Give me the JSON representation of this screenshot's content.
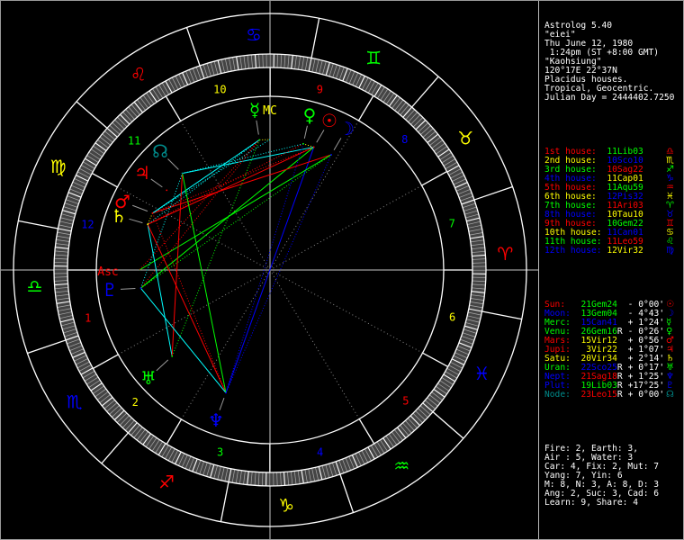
{
  "info": {
    "lines": [
      "Astrolog 5.40",
      "\"eiei\"",
      "Thu June 12, 1980",
      " 1:24pm (ST +8:00 GMT)",
      "\"Kaohsiung\"",
      "120°17E 22°37N",
      "Placidus houses.",
      "Tropical, Geocentric.",
      "Julian Day = 2444402.7250"
    ]
  },
  "colors": {
    "fire": "#ff0000",
    "earth": "#ffff00",
    "air": "#00ff00",
    "water": "#0000ff",
    "node": "#008b8b",
    "conjunction": "#ffff00",
    "opposition": "#0000ff",
    "square": "#ff0000",
    "trine": "#00ff00",
    "sextile": "#00ffff"
  },
  "signs": [
    {
      "abbr": "Ari",
      "icon": "aries-icon",
      "element": "fire"
    },
    {
      "abbr": "Tau",
      "icon": "taurus-icon",
      "element": "earth"
    },
    {
      "abbr": "Gem",
      "icon": "gemini-icon",
      "element": "air"
    },
    {
      "abbr": "Can",
      "icon": "cancer-icon",
      "element": "water"
    },
    {
      "abbr": "Leo",
      "icon": "leo-icon",
      "element": "fire"
    },
    {
      "abbr": "Vir",
      "icon": "virgo-icon",
      "element": "earth"
    },
    {
      "abbr": "Lib",
      "icon": "libra-icon",
      "element": "air"
    },
    {
      "abbr": "Sco",
      "icon": "scorpio-icon",
      "element": "water"
    },
    {
      "abbr": "Sag",
      "icon": "sagittarius-icon",
      "element": "fire"
    },
    {
      "abbr": "Cap",
      "icon": "capricorn-icon",
      "element": "earth"
    },
    {
      "abbr": "Aqu",
      "icon": "aquarius-icon",
      "element": "air"
    },
    {
      "abbr": "Pis",
      "icon": "pisces-icon",
      "element": "water"
    }
  ],
  "houses": [
    {
      "number": "1",
      "label": "1st house:",
      "value": "11Lib03",
      "icon": "libra-icon",
      "color": "#ff0000"
    },
    {
      "number": "2",
      "label": "2nd house:",
      "value": "10Sco10",
      "icon": "scorpio-icon",
      "color": "#ffff00"
    },
    {
      "number": "3",
      "label": "3rd house:",
      "value": "10Sag22",
      "icon": "sagittarius-icon",
      "color": "#00ff00"
    },
    {
      "number": "4",
      "label": "4th house:",
      "value": "11Cap01",
      "icon": "capricorn-icon",
      "color": "#0000ff"
    },
    {
      "number": "5",
      "label": "5th house:",
      "value": "11Aqu59",
      "icon": "aquarius-icon",
      "color": "#ff0000"
    },
    {
      "number": "6",
      "label": "6th house:",
      "value": "12Pis32",
      "icon": "pisces-icon",
      "color": "#ffff00"
    },
    {
      "number": "7",
      "label": "7th house:",
      "value": "11Ari03",
      "icon": "aries-icon",
      "color": "#00ff00"
    },
    {
      "number": "8",
      "label": "8th house:",
      "value": "10Tau10",
      "icon": "taurus-icon",
      "color": "#0000ff"
    },
    {
      "number": "9",
      "label": "9th house:",
      "value": "10Gem22",
      "icon": "gemini-icon",
      "color": "#ff0000"
    },
    {
      "number": "10",
      "label": "10th house:",
      "value": "11Can01",
      "icon": "cancer-icon",
      "color": "#ffff00"
    },
    {
      "number": "11",
      "label": "11th house:",
      "value": "11Leo59",
      "icon": "leo-icon",
      "color": "#00ff00"
    },
    {
      "number": "12",
      "label": "12th house:",
      "value": "12Vir32",
      "icon": "virgo-icon",
      "color": "#0000ff"
    }
  ],
  "planets": [
    {
      "key": "sun",
      "label": "Sun:",
      "value": "21Gem24",
      "retro": "",
      "lat": "- 0°00'",
      "icon": "sun-icon",
      "color": "#ff0000"
    },
    {
      "key": "moon",
      "label": "Moon:",
      "value": "13Gem04",
      "retro": "",
      "lat": "- 4°43'",
      "icon": "moon-icon",
      "color": "#0000ff"
    },
    {
      "key": "mercury",
      "label": "Merc:",
      "value": "15Can41",
      "retro": "",
      "lat": "+ 1°24'",
      "icon": "mercury-icon",
      "color": "#00ff00"
    },
    {
      "key": "venus",
      "label": "Venu:",
      "value": "26Gem16",
      "retro": "R",
      "lat": "- 0°26'",
      "icon": "venus-icon",
      "color": "#00ff00"
    },
    {
      "key": "mars",
      "label": "Mars:",
      "value": "15Vir12",
      "retro": "",
      "lat": "+ 0°56'",
      "icon": "mars-icon",
      "color": "#ff0000"
    },
    {
      "key": "jupiter",
      "label": "Jupi:",
      "value": " 3Vir22",
      "retro": "",
      "lat": "+ 1°07'",
      "icon": "jupiter-icon",
      "color": "#ff0000"
    },
    {
      "key": "saturn",
      "label": "Satu:",
      "value": "20Vir34",
      "retro": "",
      "lat": "+ 2°14'",
      "icon": "saturn-icon",
      "color": "#ffff00"
    },
    {
      "key": "uranus",
      "label": "Uran:",
      "value": "22Sco25",
      "retro": "R",
      "lat": "+ 0°17'",
      "icon": "uranus-icon",
      "color": "#00ff00"
    },
    {
      "key": "neptune",
      "label": "Nept:",
      "value": "21Sag18",
      "retro": "R",
      "lat": "+ 1°25'",
      "icon": "neptune-icon",
      "color": "#0000ff"
    },
    {
      "key": "pluto",
      "label": "Plut:",
      "value": "19Lib03",
      "retro": "R",
      "lat": "+17°25'",
      "icon": "pluto-icon",
      "color": "#0000ff"
    },
    {
      "key": "node",
      "label": "Node:",
      "value": "23Leo15",
      "retro": "R",
      "lat": "+ 0°00'",
      "icon": "node-icon",
      "color": "#008b8b"
    }
  ],
  "angles": {
    "asc_label": "Asc",
    "mc_label": "MC"
  },
  "aspects": [
    [
      "sun",
      "venus",
      "conjunction"
    ],
    [
      "sun",
      "mars",
      "square"
    ],
    [
      "sun",
      "saturn",
      "square"
    ],
    [
      "sun",
      "neptune",
      "opposition"
    ],
    [
      "sun",
      "pluto",
      "trine"
    ],
    [
      "sun",
      "node",
      "sextile"
    ],
    [
      "moon",
      "mars",
      "square"
    ],
    [
      "moon",
      "neptune",
      "opposition"
    ],
    [
      "moon",
      "pluto",
      "trine"
    ],
    [
      "moon",
      "asc",
      "trine"
    ],
    [
      "mercury",
      "mars",
      "sextile"
    ],
    [
      "mercury",
      "saturn",
      "sextile"
    ],
    [
      "mercury",
      "uranus",
      "trine"
    ],
    [
      "mercury",
      "pluto",
      "square"
    ],
    [
      "mercury",
      "asc",
      "square"
    ],
    [
      "mercury",
      "mc",
      "conjunction"
    ],
    [
      "venus",
      "saturn",
      "square"
    ],
    [
      "venus",
      "neptune",
      "opposition"
    ],
    [
      "venus",
      "node",
      "sextile"
    ],
    [
      "mars",
      "saturn",
      "conjunction"
    ],
    [
      "mars",
      "neptune",
      "square"
    ],
    [
      "mars",
      "mc",
      "sextile"
    ],
    [
      "saturn",
      "uranus",
      "sextile"
    ],
    [
      "saturn",
      "neptune",
      "square"
    ],
    [
      "uranus",
      "node",
      "square"
    ],
    [
      "neptune",
      "pluto",
      "sextile"
    ],
    [
      "neptune",
      "node",
      "trine"
    ],
    [
      "pluto",
      "node",
      "sextile"
    ]
  ],
  "stats": [
    "Fire: 2, Earth: 3,",
    "Air : 5, Water: 3",
    "Car: 4, Fix: 2, Mut: 7",
    "Yang: 7, Yin: 6",
    "M: 8, N: 3, A: 8, D: 3",
    "Ang: 2, Suc: 3, Cad: 6",
    "Learn: 9, Share: 4"
  ]
}
